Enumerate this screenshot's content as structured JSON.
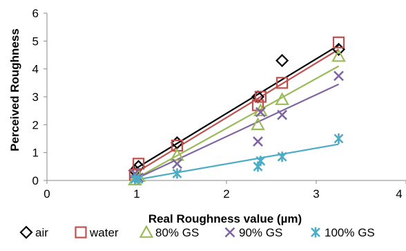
{
  "chart_data": {
    "type": "scatter",
    "title": "",
    "xlabel": "Real Roughness value (µm)",
    "ylabel": "Perceived Roughness",
    "xlim": [
      0,
      4
    ],
    "ylim": [
      0,
      6
    ],
    "x_ticks": [
      "0",
      "1",
      "2",
      "3",
      "4"
    ],
    "y_ticks": [
      "0",
      "1",
      "2",
      "3",
      "4",
      "5",
      "6"
    ],
    "grid": false,
    "legend_position": "bottom",
    "series": [
      {
        "name": "air",
        "marker": "diamond",
        "color": "#000000",
        "points": [
          [
            0.98,
            0.35
          ],
          [
            1.02,
            0.5
          ],
          [
            1.45,
            1.35
          ],
          [
            2.35,
            3.0
          ],
          [
            2.62,
            4.3
          ],
          [
            3.25,
            4.7
          ]
        ],
        "trendline": [
          [
            0.95,
            0.35
          ],
          [
            3.25,
            4.85
          ]
        ]
      },
      {
        "name": "water",
        "marker": "square",
        "color": "#c0504d",
        "points": [
          [
            0.98,
            0.2
          ],
          [
            1.02,
            0.6
          ],
          [
            1.45,
            1.25
          ],
          [
            2.35,
            2.7
          ],
          [
            2.38,
            3.0
          ],
          [
            2.62,
            3.5
          ],
          [
            3.25,
            4.95
          ]
        ],
        "trendline": [
          [
            0.95,
            0.2
          ],
          [
            3.25,
            4.7
          ]
        ]
      },
      {
        "name": "80% GS",
        "marker": "triangle",
        "color": "#9bbb59",
        "points": [
          [
            0.98,
            0.02
          ],
          [
            1.02,
            0.15
          ],
          [
            1.45,
            0.9
          ],
          [
            2.35,
            2.0
          ],
          [
            2.38,
            2.5
          ],
          [
            2.62,
            2.9
          ],
          [
            3.25,
            4.45
          ]
        ],
        "trendline": [
          [
            0.95,
            0.0
          ],
          [
            3.25,
            4.1
          ]
        ]
      },
      {
        "name": "90% GS",
        "marker": "x",
        "color": "#8064a2",
        "points": [
          [
            0.98,
            0.25
          ],
          [
            1.02,
            0.1
          ],
          [
            1.45,
            0.6
          ],
          [
            2.35,
            1.4
          ],
          [
            2.38,
            2.45
          ],
          [
            2.62,
            2.35
          ],
          [
            3.25,
            3.75
          ]
        ],
        "trendline": [
          [
            0.95,
            0.0
          ],
          [
            3.25,
            3.45
          ]
        ]
      },
      {
        "name": "100% GS",
        "marker": "asterisk",
        "color": "#4bacc6",
        "points": [
          [
            0.98,
            0.05
          ],
          [
            1.02,
            0.05
          ],
          [
            1.45,
            0.25
          ],
          [
            2.35,
            0.5
          ],
          [
            2.38,
            0.7
          ],
          [
            2.62,
            0.85
          ],
          [
            3.25,
            1.5
          ]
        ],
        "trendline": [
          [
            0.95,
            0.0
          ],
          [
            3.25,
            1.3
          ]
        ]
      }
    ]
  }
}
